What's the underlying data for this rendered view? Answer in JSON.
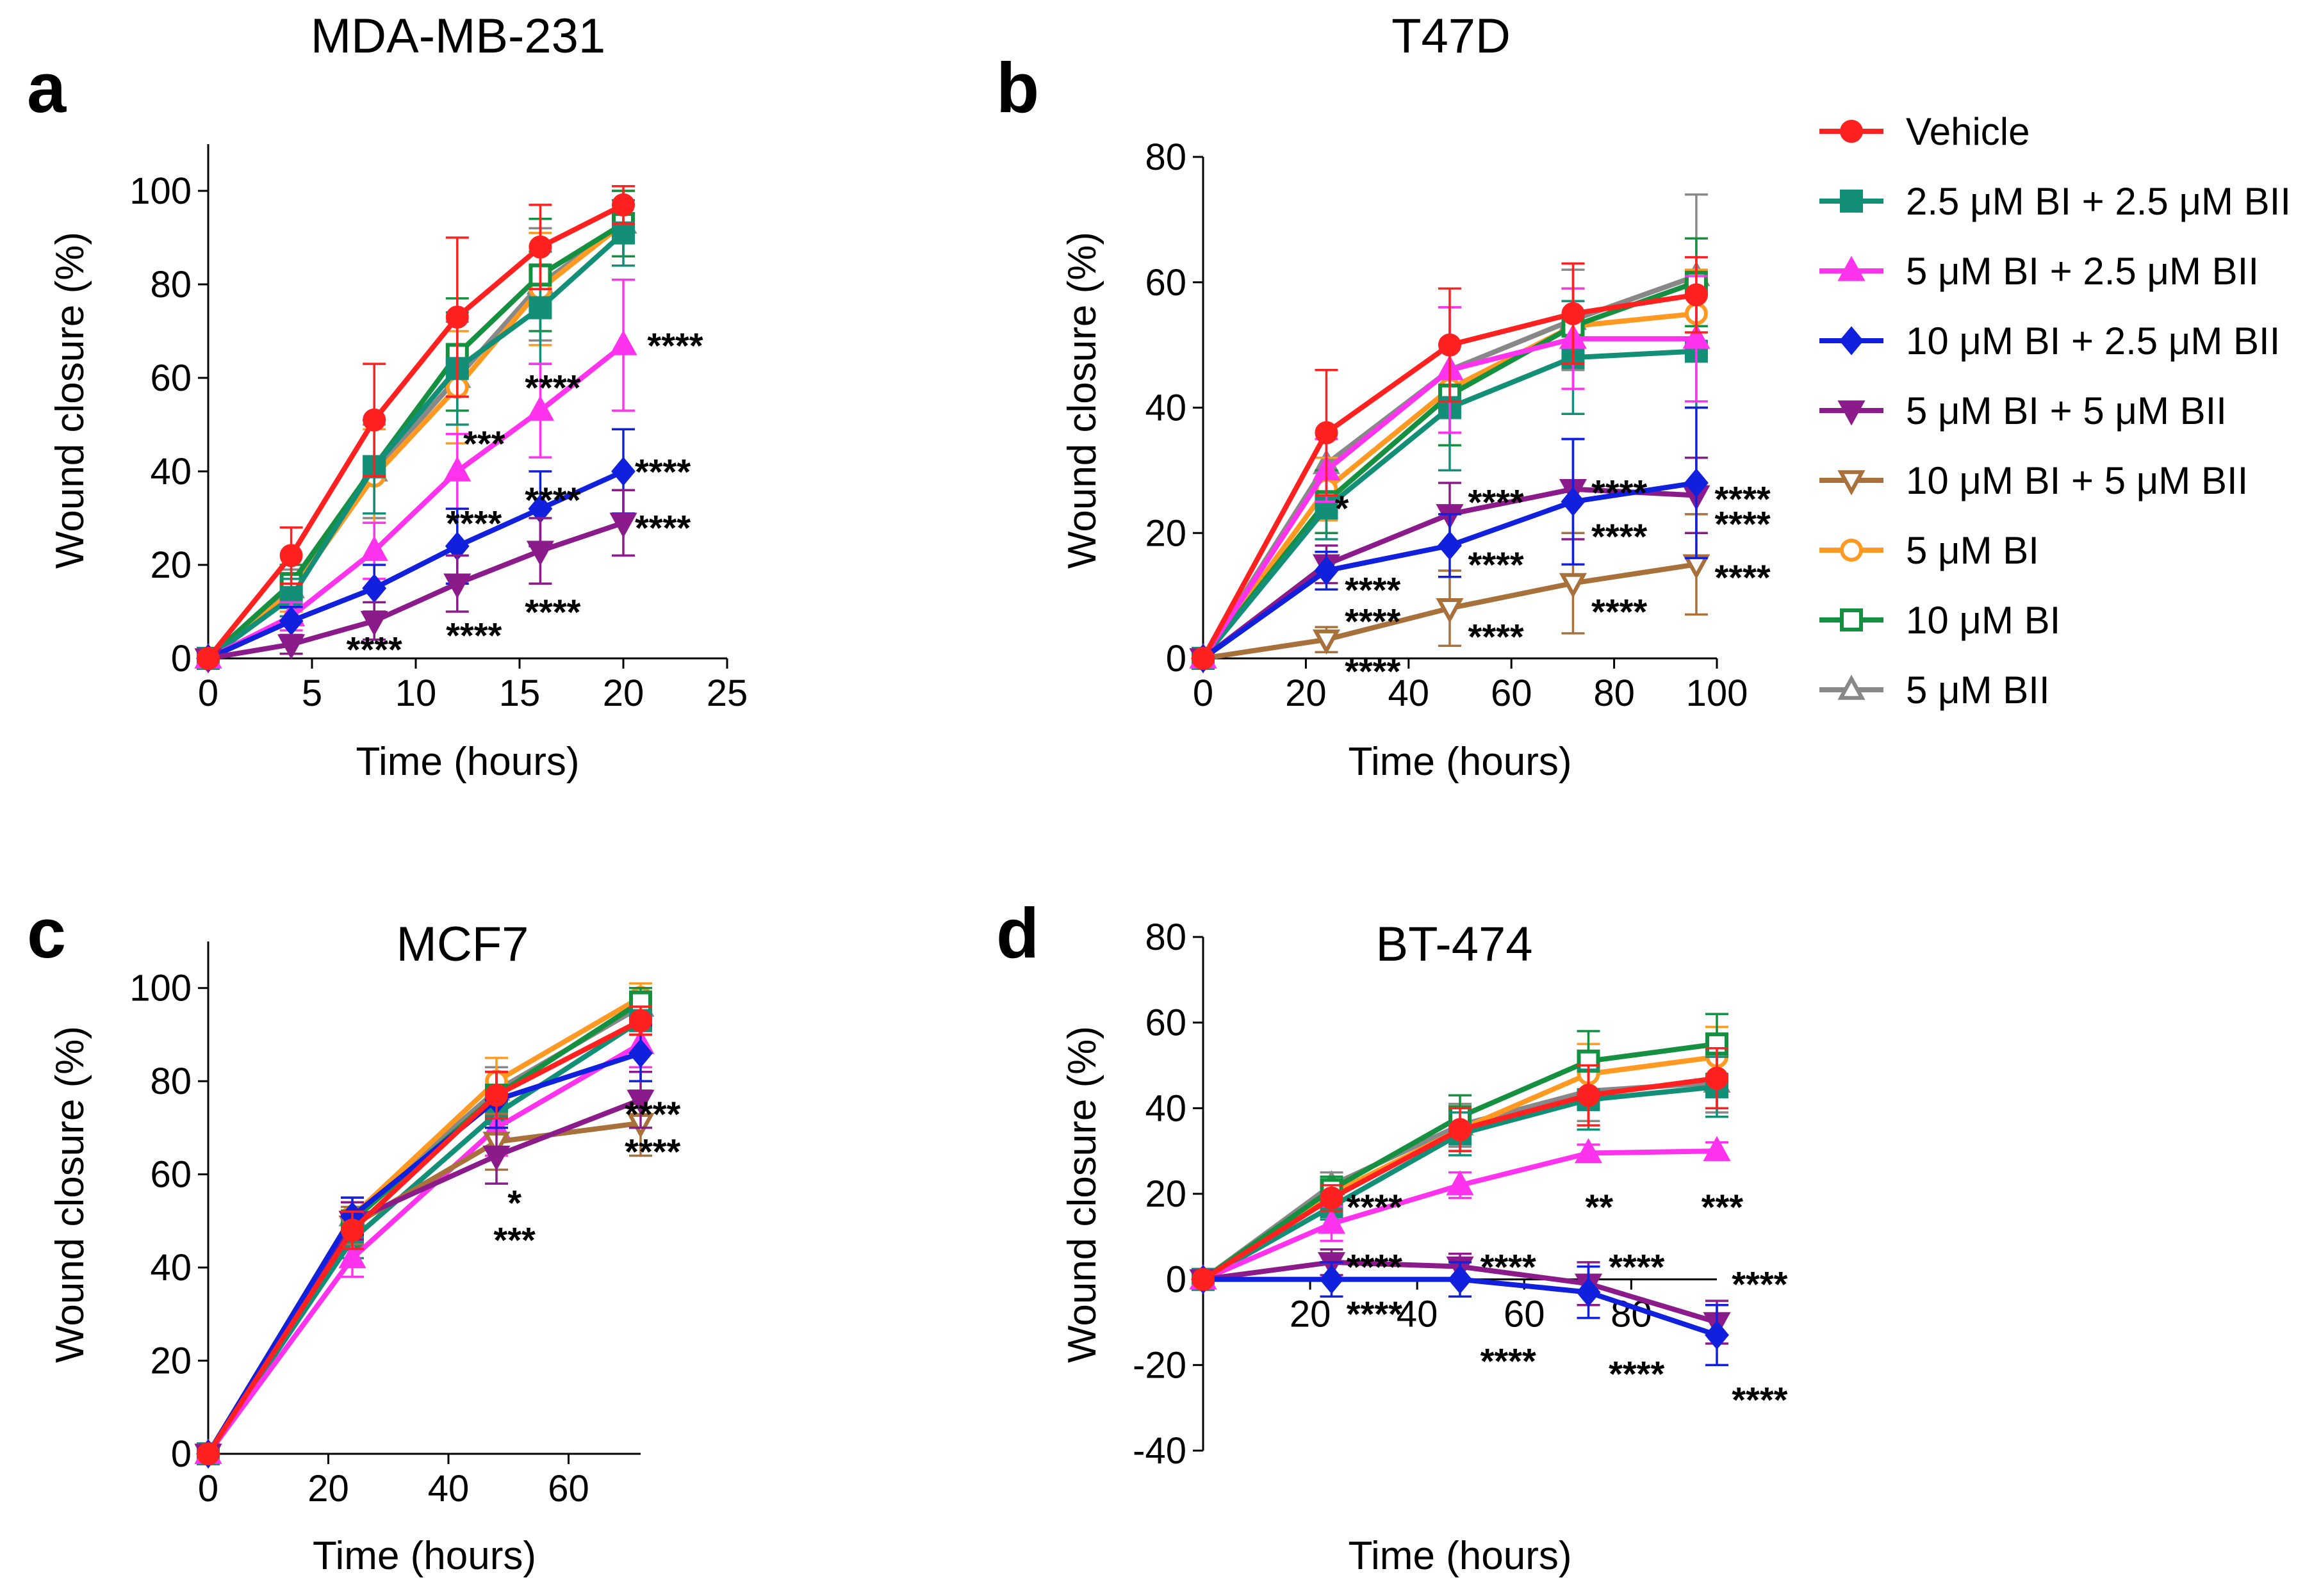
{
  "legend": {
    "position": "right",
    "entries": [
      {
        "key": "veh",
        "label": "Vehicle"
      },
      {
        "key": "c1",
        "label": "2.5 μM BI + 2.5 μM BII"
      },
      {
        "key": "c2",
        "label": "5 μM BI + 2.5 μM BII"
      },
      {
        "key": "c3",
        "label": "10 μM BI + 2.5 μM BII"
      },
      {
        "key": "c4",
        "label": "5 μM BI + 5 μM BII"
      },
      {
        "key": "c5",
        "label": "10 μM BI + 5 μM BII"
      },
      {
        "key": "bi5",
        "label": "5 μM BI"
      },
      {
        "key": "bi10",
        "label": "10 μM BI"
      },
      {
        "key": "bii5",
        "label": "5 μM BII"
      }
    ]
  },
  "styles": {
    "veh": {
      "color": "#ff2020",
      "marker": "circle",
      "filled": true
    },
    "c1": {
      "color": "#138f78",
      "marker": "square",
      "filled": true
    },
    "c2": {
      "color": "#ff33ee",
      "marker": "tri-up",
      "filled": true
    },
    "c3": {
      "color": "#1020dd",
      "marker": "diamond",
      "filled": true
    },
    "c4": {
      "color": "#8b1b8b",
      "marker": "tri-down",
      "filled": true
    },
    "c5": {
      "color": "#a8703a",
      "marker": "tri-down",
      "filled": false
    },
    "bi5": {
      "color": "#ff9922",
      "marker": "circle",
      "filled": false
    },
    "bi10": {
      "color": "#159040",
      "marker": "square",
      "filled": false
    },
    "bii5": {
      "color": "#888888",
      "marker": "tri-up",
      "filled": false
    }
  },
  "chart_data": [
    {
      "type": "line",
      "panel": "a",
      "title": "MDA-MB-231",
      "xlabel": "Time (hours)",
      "ylabel": "Wound closure (%)",
      "xlim": [
        0,
        25
      ],
      "ylim": [
        0,
        110
      ],
      "xticks": [
        0,
        5,
        10,
        15,
        20,
        25
      ],
      "yticks": [
        0,
        20,
        40,
        60,
        80,
        100
      ],
      "x": [
        0,
        4,
        8,
        12,
        16,
        20
      ],
      "series": [
        {
          "key": "bii5",
          "name": "5 μM BII",
          "values": [
            0,
            15,
            40,
            60,
            80,
            93
          ],
          "err": [
            0,
            4,
            10,
            12,
            12,
            7
          ]
        },
        {
          "key": "bi5",
          "name": "5 μM BI",
          "values": [
            0,
            14,
            39,
            58,
            79,
            93
          ],
          "err": [
            0,
            4,
            10,
            12,
            12,
            7
          ]
        },
        {
          "key": "bi10",
          "name": "10 μM BI",
          "values": [
            0,
            16,
            41,
            65,
            82,
            93
          ],
          "err": [
            0,
            4,
            10,
            12,
            12,
            7
          ]
        },
        {
          "key": "c1",
          "name": "2.5 μM BI + 2.5 μM BII",
          "values": [
            0,
            13,
            41,
            62,
            75,
            91
          ],
          "err": [
            0,
            4,
            10,
            12,
            12,
            7
          ]
        },
        {
          "key": "c2",
          "name": "5 μM BI + 2.5 μM BII",
          "values": [
            0,
            9,
            23,
            40,
            53,
            67
          ],
          "err": [
            0,
            3,
            6,
            8,
            10,
            14
          ]
        },
        {
          "key": "c3",
          "name": "10 μM BI + 2.5 μM BII",
          "values": [
            0,
            8,
            15,
            24,
            32,
            40
          ],
          "err": [
            0,
            3,
            5,
            8,
            8,
            9
          ]
        },
        {
          "key": "c4",
          "name": "5 μM BI + 5 μM BII",
          "values": [
            0,
            3,
            8,
            16,
            23,
            29
          ],
          "err": [
            0,
            2,
            4,
            6,
            7,
            7
          ]
        },
        {
          "key": "veh",
          "name": "Vehicle",
          "values": [
            0,
            22,
            51,
            73,
            88,
            97
          ],
          "err": [
            0,
            6,
            12,
            17,
            9,
            4
          ]
        }
      ],
      "annotations": [
        {
          "text": "****",
          "x": 22.5,
          "y": 67
        },
        {
          "text": "****",
          "x": 21.9,
          "y": 40
        },
        {
          "text": "****",
          "x": 21.9,
          "y": 28
        },
        {
          "text": "****",
          "x": 16.6,
          "y": 58
        },
        {
          "text": "***",
          "x": 13.3,
          "y": 46
        },
        {
          "text": "****",
          "x": 16.6,
          "y": 34
        },
        {
          "text": "****",
          "x": 12.8,
          "y": 29
        },
        {
          "text": "****",
          "x": 16.6,
          "y": 10
        },
        {
          "text": "****",
          "x": 12.8,
          "y": 5
        },
        {
          "text": "****",
          "x": 8,
          "y": 2
        }
      ]
    },
    {
      "type": "line",
      "panel": "b",
      "title": "T47D",
      "xlabel": "Time (hours)",
      "ylabel": "Wound closure (%)",
      "xlim": [
        0,
        100
      ],
      "ylim": [
        0,
        80
      ],
      "xticks": [
        0,
        20,
        40,
        60,
        80,
        100
      ],
      "yticks": [
        0,
        20,
        40,
        60,
        80
      ],
      "x": [
        0,
        24,
        48,
        72,
        96
      ],
      "series": [
        {
          "key": "bii5",
          "name": "5 μM BII",
          "values": [
            0,
            31,
            46,
            54,
            61
          ],
          "err": [
            0,
            5,
            10,
            8,
            13
          ]
        },
        {
          "key": "bi5",
          "name": "5 μM BI",
          "values": [
            0,
            27,
            43,
            53,
            55
          ],
          "err": [
            0,
            5,
            7,
            6,
            7
          ]
        },
        {
          "key": "bi10",
          "name": "10 μM BI",
          "values": [
            0,
            25,
            42,
            53,
            60
          ],
          "err": [
            0,
            5,
            8,
            6,
            7
          ]
        },
        {
          "key": "c1",
          "name": "2.5 μM BI + 2.5 μM BII",
          "values": [
            0,
            24,
            40,
            48,
            49
          ],
          "err": [
            0,
            5,
            10,
            9,
            9
          ]
        },
        {
          "key": "c2",
          "name": "5 μM BI + 2.5 μM BII",
          "values": [
            0,
            30,
            46,
            51,
            51
          ],
          "err": [
            0,
            5,
            10,
            8,
            10
          ]
        },
        {
          "key": "c5",
          "name": "10 μM BI + 5 μM BII",
          "values": [
            0,
            3,
            8,
            12,
            15
          ],
          "err": [
            0,
            2,
            6,
            8,
            8
          ]
        },
        {
          "key": "c4",
          "name": "5 μM BI + 5 μM BII",
          "values": [
            0,
            15,
            23,
            27,
            26
          ],
          "err": [
            0,
            3,
            5,
            8,
            6
          ]
        },
        {
          "key": "c3",
          "name": "10 μM BI + 2.5 μM BII",
          "values": [
            0,
            14,
            18,
            25,
            28
          ],
          "err": [
            0,
            3,
            5,
            10,
            12
          ]
        },
        {
          "key": "veh",
          "name": "Vehicle",
          "values": [
            0,
            36,
            50,
            55,
            58
          ],
          "err": [
            0,
            10,
            9,
            8,
            6
          ]
        }
      ],
      "annotations": [
        {
          "text": "*",
          "x": 27,
          "y": 24
        },
        {
          "text": "****",
          "x": 33,
          "y": 11
        },
        {
          "text": "****",
          "x": 33,
          "y": 6
        },
        {
          "text": "****",
          "x": 33,
          "y": -2
        },
        {
          "text": "****",
          "x": 57,
          "y": 25
        },
        {
          "text": "****",
          "x": 57,
          "y": 15
        },
        {
          "text": "****",
          "x": 57,
          "y": 3.5
        },
        {
          "text": "****",
          "x": 81,
          "y": 26.5
        },
        {
          "text": "****",
          "x": 81,
          "y": 19.5
        },
        {
          "text": "****",
          "x": 81,
          "y": 7.5
        },
        {
          "text": "****",
          "x": 105,
          "y": 25.5
        },
        {
          "text": "****",
          "x": 105,
          "y": 21.5
        },
        {
          "text": "****",
          "x": 105,
          "y": 13
        }
      ]
    },
    {
      "type": "line",
      "panel": "c",
      "title": "MCF7",
      "xlabel": "Time (hours)",
      "ylabel": "Wound closure (%)",
      "xlim": [
        0,
        72
      ],
      "ylim": [
        0,
        110
      ],
      "xticks": [
        0,
        20,
        40,
        60
      ],
      "yticks": [
        0,
        20,
        40,
        60,
        80,
        100
      ],
      "x": [
        0,
        24,
        48,
        72
      ],
      "series": [
        {
          "key": "bii5",
          "name": "5 μM BII",
          "values": [
            0,
            51,
            78,
            96
          ],
          "err": [
            0,
            4,
            5,
            3
          ]
        },
        {
          "key": "bi5",
          "name": "5 μM BI",
          "values": [
            0,
            51,
            80,
            98
          ],
          "err": [
            0,
            4,
            5,
            3
          ]
        },
        {
          "key": "bi10",
          "name": "10 μM BI",
          "values": [
            0,
            50,
            77,
            97
          ],
          "err": [
            0,
            4,
            5,
            3
          ]
        },
        {
          "key": "c1",
          "name": "2.5 μM BI + 2.5 μM BII",
          "values": [
            0,
            46,
            73,
            93
          ],
          "err": [
            0,
            4,
            5,
            3
          ]
        },
        {
          "key": "c2",
          "name": "5 μM BI + 2.5 μM BII",
          "values": [
            0,
            42,
            70,
            88
          ],
          "err": [
            0,
            4,
            6,
            5
          ]
        },
        {
          "key": "c5",
          "name": "10 μM BI + 5 μM BII",
          "values": [
            0,
            49,
            67,
            71
          ],
          "err": [
            0,
            4,
            6,
            7
          ]
        },
        {
          "key": "c4",
          "name": "5 μM BI + 5 μM BII",
          "values": [
            0,
            50,
            64,
            76
          ],
          "err": [
            0,
            4,
            6,
            6
          ]
        },
        {
          "key": "c3",
          "name": "10 μM BI + 2.5 μM BII",
          "values": [
            0,
            51,
            76,
            86
          ],
          "err": [
            0,
            4,
            6,
            6
          ]
        },
        {
          "key": "veh",
          "name": "Vehicle",
          "values": [
            0,
            48,
            77,
            93
          ],
          "err": [
            0,
            4,
            5,
            3
          ]
        }
      ],
      "annotations": [
        {
          "text": "****",
          "x": 74,
          "y": 73
        },
        {
          "text": "****",
          "x": 74,
          "y": 65
        },
        {
          "text": "*",
          "x": 51,
          "y": 54
        },
        {
          "text": "***",
          "x": 51,
          "y": 46
        }
      ]
    },
    {
      "type": "line",
      "panel": "d",
      "title": "BT-474",
      "xlabel": "Time (hours)",
      "ylabel": "Wound closure (%)",
      "xlim": [
        0,
        96
      ],
      "ylim": [
        -40,
        80
      ],
      "xticks": [
        20,
        40,
        60,
        80
      ],
      "yticks": [
        -40,
        -20,
        0,
        20,
        40,
        60,
        80
      ],
      "x": [
        0,
        24,
        48,
        72,
        96
      ],
      "series": [
        {
          "key": "bii5",
          "name": "5 μM BII",
          "values": [
            0,
            22,
            36,
            44,
            46
          ],
          "err": [
            0,
            3,
            5,
            7,
            7
          ]
        },
        {
          "key": "bi5",
          "name": "5 μM BI",
          "values": [
            0,
            20,
            35,
            48,
            52
          ],
          "err": [
            0,
            3,
            5,
            7,
            7
          ]
        },
        {
          "key": "bi10",
          "name": "10 μM BI",
          "values": [
            0,
            21,
            38,
            51,
            55
          ],
          "err": [
            0,
            3,
            5,
            7,
            7
          ]
        },
        {
          "key": "c1",
          "name": "2.5 μM BI + 2.5 μM BII",
          "values": [
            0,
            17,
            34,
            42,
            45
          ],
          "err": [
            0,
            3,
            5,
            7,
            7
          ]
        },
        {
          "key": "c2",
          "name": "5 μM BI + 2.5 μM BII",
          "values": [
            0,
            13,
            22,
            29.5,
            30
          ],
          "err": [
            0,
            4,
            3,
            2,
            2
          ]
        },
        {
          "key": "c4",
          "name": "5 μM BI + 5 μM BII",
          "values": [
            0,
            4,
            3,
            -1,
            -10
          ],
          "err": [
            0,
            3,
            3,
            5,
            5
          ]
        },
        {
          "key": "c3",
          "name": "10 μM BI + 2.5 μM BII",
          "values": [
            0,
            0,
            0,
            -3,
            -13
          ],
          "err": [
            0,
            4,
            4,
            6,
            7
          ]
        },
        {
          "key": "veh",
          "name": "Vehicle",
          "values": [
            0,
            19,
            35,
            43,
            47
          ],
          "err": [
            0,
            3,
            5,
            7,
            7
          ]
        }
      ],
      "annotations": [
        {
          "text": "****",
          "x": 32,
          "y": 17
        },
        {
          "text": "**",
          "x": 74,
          "y": 17
        },
        {
          "text": "***",
          "x": 97,
          "y": 17
        },
        {
          "text": "****",
          "x": 32,
          "y": 3
        },
        {
          "text": "****",
          "x": 32,
          "y": -8
        },
        {
          "text": "****",
          "x": 57,
          "y": 3
        },
        {
          "text": "****",
          "x": 57,
          "y": -19
        },
        {
          "text": "****",
          "x": 81,
          "y": 3
        },
        {
          "text": "****",
          "x": 81,
          "y": -22
        },
        {
          "text": "****",
          "x": 104,
          "y": -1
        },
        {
          "text": "****",
          "x": 104,
          "y": -28
        }
      ]
    }
  ],
  "panel_letters": {
    "a": "a",
    "b": "b",
    "c": "c",
    "d": "d"
  }
}
